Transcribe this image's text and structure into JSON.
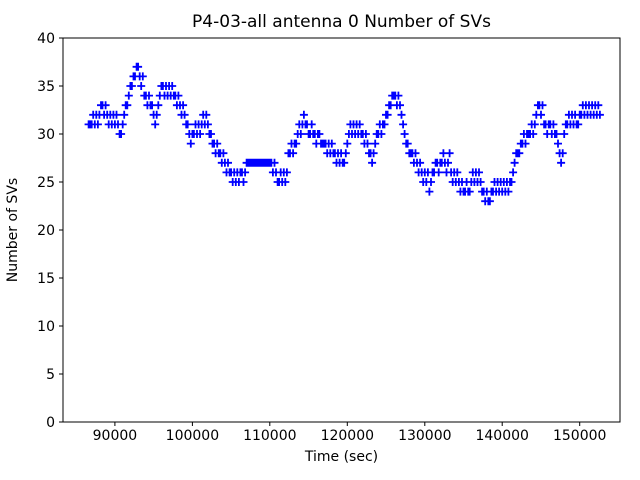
{
  "chart_data": {
    "type": "scatter",
    "title": "P4-03-all antenna 0 Number of SVs",
    "xlabel": "Time (sec)",
    "ylabel": "Number of SVs",
    "marker": "plus",
    "marker_color": "#0000ff",
    "axes_color": "#000000",
    "background_color": "#ffffff",
    "grid": false,
    "legend": null,
    "xlim": [
      83300,
      155200
    ],
    "ylim": [
      0,
      40
    ],
    "xticks": [
      90000,
      100000,
      110000,
      120000,
      130000,
      140000,
      150000
    ],
    "yticks": [
      0,
      5,
      10,
      15,
      20,
      25,
      30,
      35,
      40
    ],
    "points": [
      [
        86600,
        31
      ],
      [
        86800,
        31
      ],
      [
        87000,
        31
      ],
      [
        87200,
        32
      ],
      [
        87400,
        31
      ],
      [
        87600,
        32
      ],
      [
        87800,
        31
      ],
      [
        88000,
        32
      ],
      [
        88200,
        33
      ],
      [
        88400,
        33
      ],
      [
        88600,
        32
      ],
      [
        88800,
        33
      ],
      [
        89000,
        32
      ],
      [
        89200,
        31
      ],
      [
        89400,
        32
      ],
      [
        89600,
        31
      ],
      [
        89800,
        32
      ],
      [
        90000,
        31
      ],
      [
        90200,
        32
      ],
      [
        90400,
        31
      ],
      [
        90600,
        30
      ],
      [
        90800,
        30
      ],
      [
        91000,
        31
      ],
      [
        91200,
        32
      ],
      [
        91400,
        33
      ],
      [
        91600,
        33
      ],
      [
        91800,
        34
      ],
      [
        92000,
        35
      ],
      [
        92200,
        35
      ],
      [
        92400,
        36
      ],
      [
        92600,
        36
      ],
      [
        92800,
        37
      ],
      [
        93000,
        37
      ],
      [
        93200,
        36
      ],
      [
        93400,
        35
      ],
      [
        93600,
        36
      ],
      [
        93800,
        34
      ],
      [
        94000,
        34
      ],
      [
        94200,
        33
      ],
      [
        94400,
        34
      ],
      [
        94600,
        33
      ],
      [
        94800,
        33
      ],
      [
        95000,
        32
      ],
      [
        95200,
        31
      ],
      [
        95400,
        32
      ],
      [
        95600,
        33
      ],
      [
        95800,
        34
      ],
      [
        96000,
        35
      ],
      [
        96200,
        35
      ],
      [
        96400,
        34
      ],
      [
        96600,
        35
      ],
      [
        96800,
        34
      ],
      [
        97000,
        35
      ],
      [
        97200,
        34
      ],
      [
        97400,
        35
      ],
      [
        97600,
        34
      ],
      [
        97800,
        34
      ],
      [
        98000,
        33
      ],
      [
        98200,
        34
      ],
      [
        98400,
        33
      ],
      [
        98600,
        32
      ],
      [
        98800,
        33
      ],
      [
        99000,
        32
      ],
      [
        99200,
        31
      ],
      [
        99400,
        31
      ],
      [
        99600,
        30
      ],
      [
        99800,
        29
      ],
      [
        100000,
        30
      ],
      [
        100200,
        30
      ],
      [
        100400,
        31
      ],
      [
        100600,
        30
      ],
      [
        100800,
        31
      ],
      [
        101000,
        30
      ],
      [
        101200,
        31
      ],
      [
        101400,
        32
      ],
      [
        101600,
        31
      ],
      [
        101800,
        32
      ],
      [
        102000,
        31
      ],
      [
        102200,
        30
      ],
      [
        102400,
        30
      ],
      [
        102600,
        29
      ],
      [
        102800,
        29
      ],
      [
        103000,
        28
      ],
      [
        103200,
        29
      ],
      [
        103400,
        28
      ],
      [
        103600,
        28
      ],
      [
        103800,
        27
      ],
      [
        104000,
        28
      ],
      [
        104200,
        27
      ],
      [
        104400,
        26
      ],
      [
        104600,
        27
      ],
      [
        104800,
        26
      ],
      [
        105000,
        26
      ],
      [
        105200,
        25
      ],
      [
        105400,
        26
      ],
      [
        105600,
        25
      ],
      [
        105800,
        26
      ],
      [
        106000,
        25
      ],
      [
        106200,
        26
      ],
      [
        106400,
        26
      ],
      [
        106600,
        25
      ],
      [
        106800,
        26
      ],
      [
        107000,
        27
      ],
      [
        107200,
        27
      ],
      [
        107400,
        27
      ],
      [
        107600,
        27
      ],
      [
        107800,
        27
      ],
      [
        108000,
        27
      ],
      [
        108200,
        27
      ],
      [
        108400,
        27
      ],
      [
        108600,
        27
      ],
      [
        108800,
        27
      ],
      [
        109000,
        27
      ],
      [
        109200,
        27
      ],
      [
        109400,
        27
      ],
      [
        109600,
        27
      ],
      [
        109800,
        27
      ],
      [
        110000,
        27
      ],
      [
        110200,
        27
      ],
      [
        110400,
        26
      ],
      [
        110600,
        27
      ],
      [
        110800,
        26
      ],
      [
        111000,
        25
      ],
      [
        111200,
        25
      ],
      [
        111400,
        26
      ],
      [
        111600,
        25
      ],
      [
        111800,
        26
      ],
      [
        112000,
        25
      ],
      [
        112200,
        26
      ],
      [
        112400,
        28
      ],
      [
        112600,
        28
      ],
      [
        112800,
        29
      ],
      [
        113000,
        28
      ],
      [
        113200,
        29
      ],
      [
        113400,
        29
      ],
      [
        113600,
        30
      ],
      [
        113800,
        31
      ],
      [
        114000,
        30
      ],
      [
        114200,
        31
      ],
      [
        114400,
        32
      ],
      [
        114600,
        31
      ],
      [
        114800,
        31
      ],
      [
        115000,
        30
      ],
      [
        115200,
        30
      ],
      [
        115400,
        31
      ],
      [
        115600,
        30
      ],
      [
        115800,
        30
      ],
      [
        116000,
        29
      ],
      [
        116200,
        30
      ],
      [
        116400,
        30
      ],
      [
        116600,
        29
      ],
      [
        116800,
        29
      ],
      [
        117000,
        29
      ],
      [
        117200,
        29
      ],
      [
        117400,
        28
      ],
      [
        117600,
        29
      ],
      [
        117800,
        28
      ],
      [
        118000,
        29
      ],
      [
        118200,
        28
      ],
      [
        118400,
        28
      ],
      [
        118600,
        27
      ],
      [
        118800,
        28
      ],
      [
        119000,
        27
      ],
      [
        119200,
        28
      ],
      [
        119400,
        27
      ],
      [
        119600,
        27
      ],
      [
        119800,
        28
      ],
      [
        120000,
        29
      ],
      [
        120200,
        30
      ],
      [
        120400,
        31
      ],
      [
        120600,
        30
      ],
      [
        120800,
        31
      ],
      [
        121000,
        30
      ],
      [
        121200,
        31
      ],
      [
        121400,
        30
      ],
      [
        121600,
        31
      ],
      [
        121800,
        30
      ],
      [
        122000,
        30
      ],
      [
        122200,
        29
      ],
      [
        122400,
        30
      ],
      [
        122600,
        29
      ],
      [
        122800,
        28
      ],
      [
        123000,
        28
      ],
      [
        123200,
        27
      ],
      [
        123400,
        28
      ],
      [
        123600,
        29
      ],
      [
        123800,
        30
      ],
      [
        124000,
        30
      ],
      [
        124200,
        31
      ],
      [
        124400,
        30
      ],
      [
        124600,
        31
      ],
      [
        124800,
        31
      ],
      [
        125000,
        32
      ],
      [
        125200,
        32
      ],
      [
        125400,
        33
      ],
      [
        125600,
        33
      ],
      [
        125800,
        34
      ],
      [
        126000,
        34
      ],
      [
        126200,
        34
      ],
      [
        126400,
        33
      ],
      [
        126600,
        34
      ],
      [
        126800,
        33
      ],
      [
        127000,
        32
      ],
      [
        127200,
        31
      ],
      [
        127400,
        30
      ],
      [
        127600,
        29
      ],
      [
        127800,
        29
      ],
      [
        128000,
        28
      ],
      [
        128200,
        28
      ],
      [
        128400,
        28
      ],
      [
        128600,
        27
      ],
      [
        128800,
        28
      ],
      [
        129000,
        27
      ],
      [
        129200,
        26
      ],
      [
        129400,
        27
      ],
      [
        129600,
        26
      ],
      [
        129800,
        25
      ],
      [
        130000,
        26
      ],
      [
        130200,
        25
      ],
      [
        130400,
        26
      ],
      [
        130600,
        24
      ],
      [
        130800,
        25
      ],
      [
        131000,
        26
      ],
      [
        131200,
        26
      ],
      [
        131400,
        27
      ],
      [
        131600,
        27
      ],
      [
        131800,
        26
      ],
      [
        132000,
        27
      ],
      [
        132200,
        27
      ],
      [
        132400,
        28
      ],
      [
        132600,
        27
      ],
      [
        132800,
        26
      ],
      [
        133000,
        27
      ],
      [
        133200,
        28
      ],
      [
        133400,
        26
      ],
      [
        133600,
        25
      ],
      [
        133800,
        26
      ],
      [
        134000,
        25
      ],
      [
        134200,
        26
      ],
      [
        134400,
        25
      ],
      [
        134600,
        24
      ],
      [
        134800,
        25
      ],
      [
        135000,
        24
      ],
      [
        135200,
        24
      ],
      [
        135400,
        25
      ],
      [
        135600,
        24
      ],
      [
        135800,
        24
      ],
      [
        136000,
        25
      ],
      [
        136200,
        26
      ],
      [
        136400,
        25
      ],
      [
        136600,
        26
      ],
      [
        136800,
        25
      ],
      [
        137000,
        26
      ],
      [
        137200,
        25
      ],
      [
        137400,
        24
      ],
      [
        137600,
        24
      ],
      [
        137800,
        23
      ],
      [
        138000,
        24
      ],
      [
        138200,
        23
      ],
      [
        138400,
        23
      ],
      [
        138600,
        24
      ],
      [
        138800,
        24
      ],
      [
        139000,
        25
      ],
      [
        139200,
        24
      ],
      [
        139400,
        25
      ],
      [
        139600,
        24
      ],
      [
        139800,
        25
      ],
      [
        140000,
        24
      ],
      [
        140200,
        25
      ],
      [
        140400,
        24
      ],
      [
        140600,
        25
      ],
      [
        140800,
        24
      ],
      [
        141000,
        25
      ],
      [
        141200,
        25
      ],
      [
        141400,
        26
      ],
      [
        141600,
        27
      ],
      [
        141800,
        28
      ],
      [
        142000,
        28
      ],
      [
        142200,
        28
      ],
      [
        142400,
        29
      ],
      [
        142600,
        29
      ],
      [
        142800,
        30
      ],
      [
        143000,
        29
      ],
      [
        143200,
        30
      ],
      [
        143400,
        30
      ],
      [
        143600,
        30
      ],
      [
        143800,
        31
      ],
      [
        144000,
        30
      ],
      [
        144200,
        31
      ],
      [
        144400,
        32
      ],
      [
        144600,
        33
      ],
      [
        144800,
        33
      ],
      [
        145000,
        32
      ],
      [
        145200,
        33
      ],
      [
        145400,
        31
      ],
      [
        145600,
        31
      ],
      [
        145800,
        30
      ],
      [
        146000,
        31
      ],
      [
        146200,
        31
      ],
      [
        146400,
        30
      ],
      [
        146600,
        31
      ],
      [
        146800,
        30
      ],
      [
        147000,
        30
      ],
      [
        147200,
        29
      ],
      [
        147400,
        28
      ],
      [
        147600,
        27
      ],
      [
        147800,
        28
      ],
      [
        148000,
        30
      ],
      [
        148200,
        31
      ],
      [
        148400,
        31
      ],
      [
        148600,
        32
      ],
      [
        148800,
        31
      ],
      [
        149000,
        32
      ],
      [
        149200,
        31
      ],
      [
        149400,
        32
      ],
      [
        149600,
        31
      ],
      [
        149800,
        31
      ],
      [
        150000,
        32
      ],
      [
        150200,
        32
      ],
      [
        150400,
        33
      ],
      [
        150600,
        32
      ],
      [
        150800,
        33
      ],
      [
        151000,
        32
      ],
      [
        151200,
        33
      ],
      [
        151400,
        32
      ],
      [
        151600,
        33
      ],
      [
        151800,
        32
      ],
      [
        152000,
        33
      ],
      [
        152200,
        32
      ],
      [
        152400,
        33
      ],
      [
        152600,
        32
      ]
    ]
  }
}
